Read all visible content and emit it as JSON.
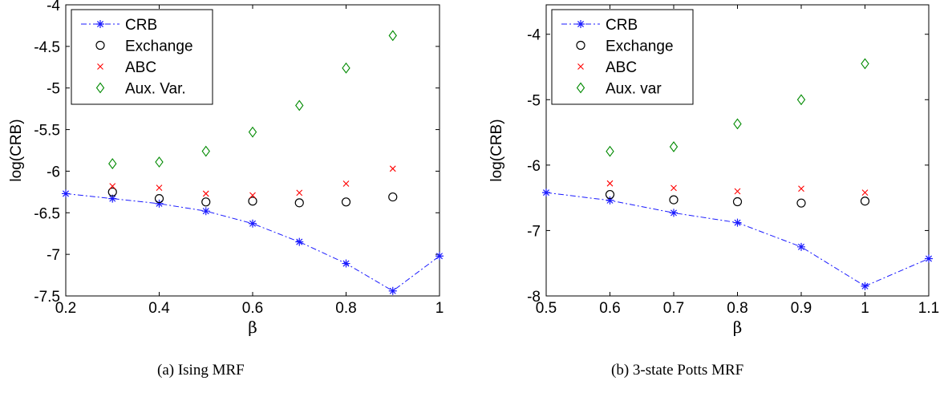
{
  "captions": [
    "(a) Ising MRF",
    "(b) 3-state Potts MRF"
  ],
  "colors": {
    "crb": "#1a1aff",
    "exchange": "#000000",
    "abc": "#ff0000",
    "auxvar": "#008a00"
  },
  "chart_data": [
    {
      "type": "scatter",
      "title": "",
      "xlabel": "β",
      "ylabel": "log(CRB)",
      "xlim": [
        0.2,
        1.0
      ],
      "ylim": [
        -7.5,
        -4.0
      ],
      "xticks": [
        "0.2",
        "0.4",
        "0.6",
        "0.8",
        "1"
      ],
      "xtick_values": [
        0.2,
        0.4,
        0.6,
        0.8,
        1.0
      ],
      "yticks": [
        "-4",
        "-4.5",
        "-5",
        "-5.5",
        "-6",
        "-6.5",
        "-7",
        "-7.5"
      ],
      "ytick_values": [
        -4.0,
        -4.5,
        -5.0,
        -5.5,
        -6.0,
        -6.5,
        -7.0,
        -7.5
      ],
      "grid": false,
      "legend_position": "top-left",
      "series": [
        {
          "name": "CRB",
          "marker": "star-line",
          "color": "#1a1aff",
          "x": [
            0.2,
            0.3,
            0.4,
            0.5,
            0.6,
            0.7,
            0.8,
            0.9,
            1.0
          ],
          "y": [
            -6.27,
            -6.33,
            -6.39,
            -6.48,
            -6.63,
            -6.85,
            -7.11,
            -7.44,
            -7.02
          ]
        },
        {
          "name": "Exchange",
          "marker": "circle",
          "color": "#000000",
          "x": [
            0.3,
            0.4,
            0.5,
            0.6,
            0.7,
            0.8,
            0.9
          ],
          "y": [
            -6.25,
            -6.33,
            -6.37,
            -6.36,
            -6.38,
            -6.37,
            -6.31
          ]
        },
        {
          "name": "ABC",
          "marker": "x",
          "color": "#ff0000",
          "x": [
            0.3,
            0.4,
            0.5,
            0.6,
            0.7,
            0.8,
            0.9
          ],
          "y": [
            -6.18,
            -6.2,
            -6.27,
            -6.29,
            -6.26,
            -6.15,
            -5.97
          ]
        },
        {
          "name": "Aux. Var.",
          "marker": "diamond",
          "color": "#008a00",
          "x": [
            0.3,
            0.4,
            0.5,
            0.6,
            0.7,
            0.8,
            0.9
          ],
          "y": [
            -5.91,
            -5.89,
            -5.76,
            -5.53,
            -5.21,
            -4.76,
            -4.37
          ]
        }
      ]
    },
    {
      "type": "scatter",
      "title": "",
      "xlabel": "β",
      "ylabel": "log(CRB)",
      "xlim": [
        0.5,
        1.1
      ],
      "ylim": [
        -8.0,
        -3.55
      ],
      "xticks": [
        "0.5",
        "0.6",
        "0.7",
        "0.8",
        "0.9",
        "1",
        "1.1"
      ],
      "xtick_values": [
        0.5,
        0.6,
        0.7,
        0.8,
        0.9,
        1.0,
        1.1
      ],
      "yticks": [
        "-4",
        "-5",
        "-6",
        "-7",
        "-8"
      ],
      "ytick_values": [
        -4.0,
        -5.0,
        -6.0,
        -7.0,
        -8.0
      ],
      "grid": false,
      "legend_position": "top-left",
      "series": [
        {
          "name": "CRB",
          "marker": "star-line",
          "color": "#1a1aff",
          "x": [
            0.5,
            0.6,
            0.7,
            0.8,
            0.9,
            1.0,
            1.1
          ],
          "y": [
            -6.42,
            -6.54,
            -6.73,
            -6.88,
            -7.25,
            -7.85,
            -7.43
          ]
        },
        {
          "name": "Exchange",
          "marker": "circle",
          "color": "#000000",
          "x": [
            0.6,
            0.7,
            0.8,
            0.9,
            1.0
          ],
          "y": [
            -6.45,
            -6.53,
            -6.56,
            -6.58,
            -6.55
          ]
        },
        {
          "name": "ABC",
          "marker": "x",
          "color": "#ff0000",
          "x": [
            0.6,
            0.7,
            0.8,
            0.9,
            1.0
          ],
          "y": [
            -6.28,
            -6.35,
            -6.4,
            -6.36,
            -6.42
          ]
        },
        {
          "name": "Aux. var",
          "marker": "diamond",
          "color": "#008a00",
          "x": [
            0.6,
            0.7,
            0.8,
            0.9,
            1.0
          ],
          "y": [
            -5.79,
            -5.72,
            -5.37,
            -5.0,
            -4.45
          ]
        }
      ]
    }
  ]
}
